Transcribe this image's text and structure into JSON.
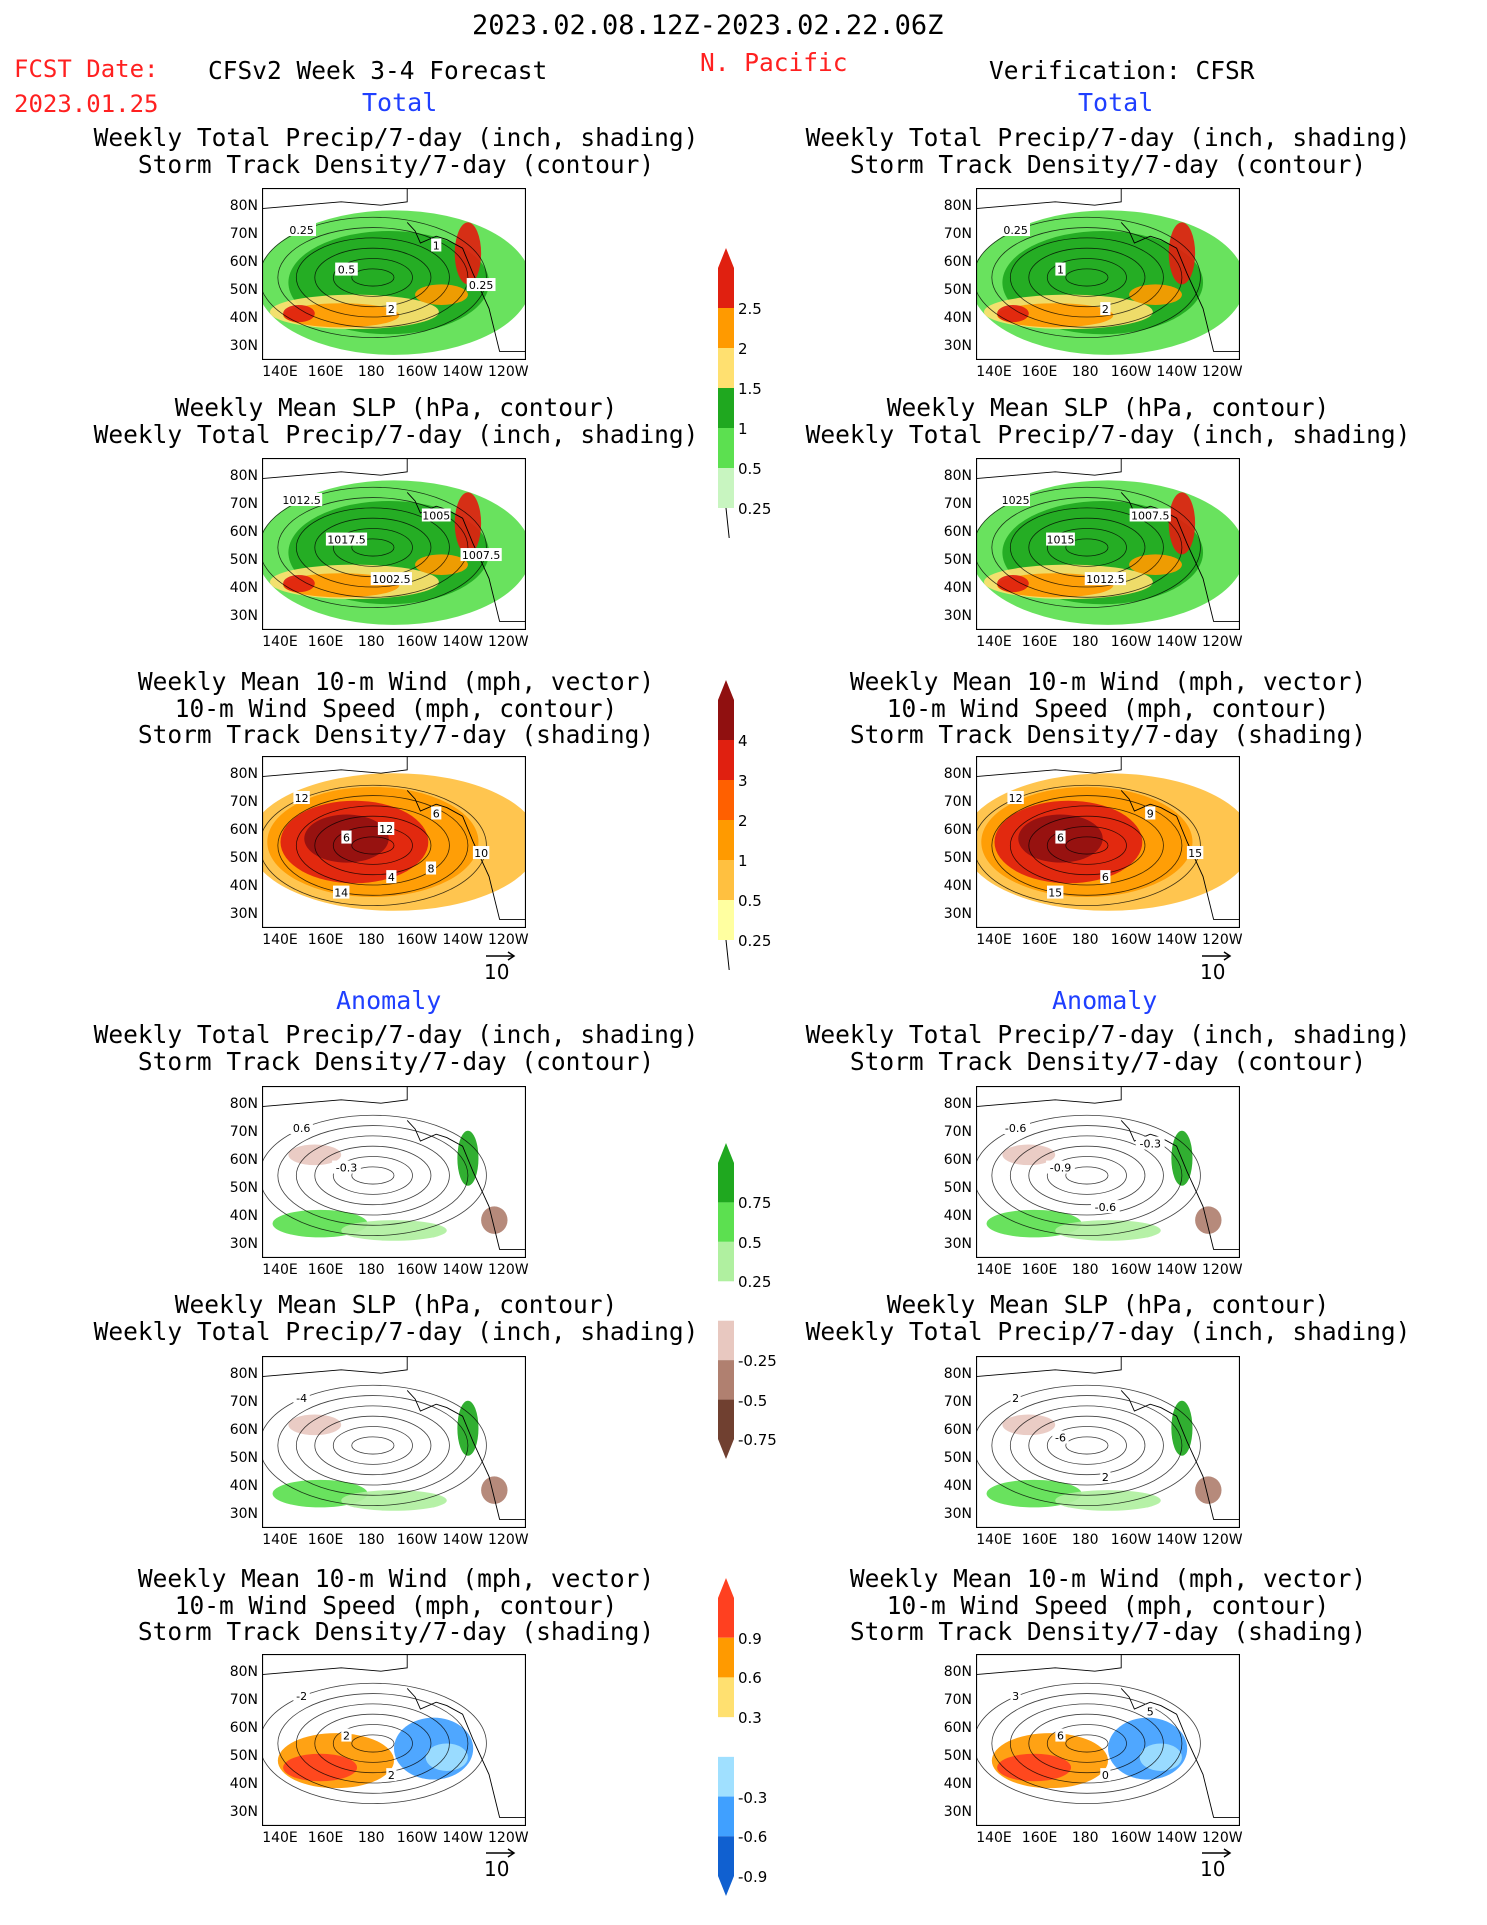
{
  "header": {
    "valid_period": "2023.02.08.12Z-2023.02.22.06Z",
    "fcst_label": "FCST Date:",
    "fcst_date": "2023.01.25",
    "model_title": "CFSv2 Week 3-4 Forecast",
    "region": "N. Pacific",
    "verification": "Verification: CFSR"
  },
  "sections": {
    "total": "Total",
    "anomaly": "Anomaly"
  },
  "colors": {
    "title_red": "#ff2020",
    "section_blue": "#1f3fff",
    "precip_total": [
      "#c8f5c0",
      "#5ce050",
      "#1fa81f",
      "#ffe070",
      "#ff9a00",
      "#e02010"
    ],
    "stdens_total": [
      "#ffffa0",
      "#ffc040",
      "#ff9a00",
      "#ff6000",
      "#e02010",
      "#901010"
    ],
    "precip_anom": [
      "#1fa81f",
      "#5ce050",
      "#b0f0a0",
      "#e8c8c0",
      "#b08070",
      "#704030"
    ],
    "wind_anom": [
      "#ff4020",
      "#ff9a00",
      "#ffe070",
      "#a0e0ff",
      "#40a0ff",
      "#1060d0"
    ]
  },
  "chart_data": [
    {
      "id": "fcst-total-precip-storm",
      "type": "heatmap",
      "title": [
        "Weekly Total Precip/7-day (inch, shading)",
        "Storm Track Density/7-day (contour)"
      ],
      "xticks": [
        "140E",
        "160E",
        "180",
        "160W",
        "140W",
        "120W"
      ],
      "yticks": [
        "80N",
        "70N",
        "60N",
        "50N",
        "40N",
        "30N"
      ],
      "contour_labels": [
        "0.25",
        "0.5",
        "2",
        "1",
        "0.25"
      ]
    },
    {
      "id": "fcst-total-slp-precip",
      "type": "heatmap",
      "title": [
        "Weekly Mean SLP (hPa, contour)",
        "Weekly Total Precip/7-day (inch, shading)"
      ],
      "xticks": [
        "140E",
        "160E",
        "180",
        "160W",
        "140W",
        "120W"
      ],
      "yticks": [
        "80N",
        "70N",
        "60N",
        "50N",
        "40N",
        "30N"
      ],
      "contour_labels": [
        "1012.5",
        "1017.5",
        "1002.5",
        "1005",
        "1007.5"
      ]
    },
    {
      "id": "fcst-total-wind-storm",
      "type": "heatmap",
      "title": [
        "Weekly Mean 10-m Wind (mph, vector)",
        "10-m Wind Speed (mph, contour)",
        "Storm Track Density/7-day (shading)"
      ],
      "xticks": [
        "140E",
        "160E",
        "180",
        "160W",
        "140W",
        "120W"
      ],
      "yticks": [
        "80N",
        "70N",
        "60N",
        "50N",
        "40N",
        "30N"
      ],
      "contour_labels": [
        "12",
        "6",
        "4",
        "6",
        "10",
        "14",
        "12",
        "8"
      ],
      "vector_ref": "10"
    },
    {
      "id": "ver-total-precip-storm",
      "type": "heatmap",
      "title": [
        "Weekly Total Precip/7-day (inch, shading)",
        "Storm Track Density/7-day (contour)"
      ],
      "xticks": [
        "140E",
        "160E",
        "180",
        "160W",
        "140W",
        "120W"
      ],
      "yticks": [
        "80N",
        "70N",
        "60N",
        "50N",
        "40N",
        "30N"
      ],
      "contour_labels": [
        "0.25",
        "1",
        "2"
      ]
    },
    {
      "id": "ver-total-slp-precip",
      "type": "heatmap",
      "title": [
        "Weekly Mean SLP (hPa, contour)",
        "Weekly Total Precip/7-day (inch, shading)"
      ],
      "xticks": [
        "140E",
        "160E",
        "180",
        "160W",
        "140W",
        "120W"
      ],
      "yticks": [
        "80N",
        "70N",
        "60N",
        "50N",
        "40N",
        "30N"
      ],
      "contour_labels": [
        "1025",
        "1015",
        "1012.5",
        "1007.5"
      ]
    },
    {
      "id": "ver-total-wind-storm",
      "type": "heatmap",
      "title": [
        "Weekly Mean 10-m Wind (mph, vector)",
        "10-m Wind Speed (mph, contour)",
        "Storm Track Density/7-day (shading)"
      ],
      "xticks": [
        "140E",
        "160E",
        "180",
        "160W",
        "140W",
        "120W"
      ],
      "yticks": [
        "80N",
        "70N",
        "60N",
        "50N",
        "40N",
        "30N"
      ],
      "contour_labels": [
        "12",
        "6",
        "6",
        "9",
        "15",
        "15"
      ],
      "vector_ref": "10"
    },
    {
      "id": "fcst-anom-precip-storm",
      "type": "heatmap",
      "title": [
        "Weekly Total Precip/7-day (inch, shading)",
        "Storm Track Density/7-day (contour)"
      ],
      "xticks": [
        "140E",
        "160E",
        "180",
        "160W",
        "140W",
        "120W"
      ],
      "yticks": [
        "80N",
        "70N",
        "60N",
        "50N",
        "40N",
        "30N"
      ],
      "contour_labels": [
        "0.6",
        "-0.3"
      ]
    },
    {
      "id": "fcst-anom-slp-precip",
      "type": "heatmap",
      "title": [
        "Weekly Mean SLP (hPa, contour)",
        "Weekly Total Precip/7-day (inch, shading)"
      ],
      "xticks": [
        "140E",
        "160E",
        "180",
        "160W",
        "140W",
        "120W"
      ],
      "yticks": [
        "80N",
        "70N",
        "60N",
        "50N",
        "40N",
        "30N"
      ],
      "contour_labels": [
        "-4"
      ]
    },
    {
      "id": "fcst-anom-wind-storm",
      "type": "heatmap",
      "title": [
        "Weekly Mean 10-m Wind (mph, vector)",
        "10-m Wind Speed (mph, contour)",
        "Storm Track Density/7-day (shading)"
      ],
      "xticks": [
        "140E",
        "160E",
        "180",
        "160W",
        "140W",
        "120W"
      ],
      "yticks": [
        "80N",
        "70N",
        "60N",
        "50N",
        "40N",
        "30N"
      ],
      "contour_labels": [
        "-2",
        "2",
        "2"
      ],
      "vector_ref": "10"
    },
    {
      "id": "ver-anom-precip-storm",
      "type": "heatmap",
      "title": [
        "Weekly Total Precip/7-day (inch, shading)",
        "Storm Track Density/7-day (contour)"
      ],
      "xticks": [
        "140E",
        "160E",
        "180",
        "160W",
        "140W",
        "120W"
      ],
      "yticks": [
        "80N",
        "70N",
        "60N",
        "50N",
        "40N",
        "30N"
      ],
      "contour_labels": [
        "-0.6",
        "-0.9",
        "-0.6",
        "-0.3"
      ]
    },
    {
      "id": "ver-anom-slp-precip",
      "type": "heatmap",
      "title": [
        "Weekly Mean SLP (hPa, contour)",
        "Weekly Total Precip/7-day (inch, shading)"
      ],
      "xticks": [
        "140E",
        "160E",
        "180",
        "160W",
        "140W",
        "120W"
      ],
      "yticks": [
        "80N",
        "70N",
        "60N",
        "50N",
        "40N",
        "30N"
      ],
      "contour_labels": [
        "2",
        "-6",
        "2"
      ]
    },
    {
      "id": "ver-anom-wind-storm",
      "type": "heatmap",
      "title": [
        "Weekly Mean 10-m Wind (mph, vector)",
        "10-m Wind Speed (mph, contour)",
        "Storm Track Density/7-day (shading)"
      ],
      "xticks": [
        "140E",
        "160E",
        "180",
        "160W",
        "140W",
        "120W"
      ],
      "yticks": [
        "80N",
        "70N",
        "60N",
        "50N",
        "40N",
        "30N"
      ],
      "contour_labels": [
        "3",
        "6",
        "0",
        "5"
      ],
      "vector_ref": "10"
    }
  ],
  "colorbars": [
    {
      "id": "cb-precip-total",
      "labels": [
        "2.5",
        "2",
        "1.5",
        "1",
        "0.5",
        "0.25"
      ]
    },
    {
      "id": "cb-stdens-total",
      "labels": [
        "4",
        "3",
        "2",
        "1",
        "0.5",
        "0.25"
      ]
    },
    {
      "id": "cb-precip-anom",
      "labels": [
        "0.75",
        "0.5",
        "0.25",
        "-0.25",
        "-0.5",
        "-0.75"
      ]
    },
    {
      "id": "cb-wind-anom",
      "labels": [
        "0.9",
        "0.6",
        "0.3",
        "-0.3",
        "-0.6",
        "-0.9"
      ]
    }
  ]
}
